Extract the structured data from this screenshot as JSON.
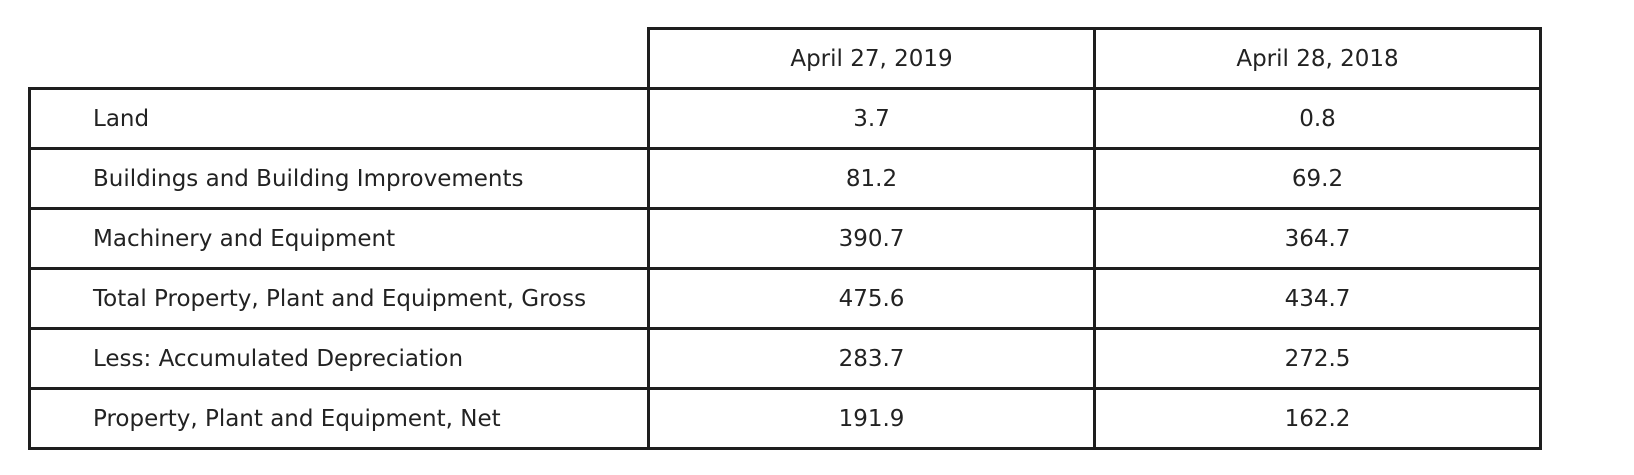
{
  "table": {
    "columns": [
      "",
      "April 27, 2019",
      "April 28, 2018"
    ],
    "rows": [
      {
        "label": "Land",
        "values": [
          "3.7",
          "0.8"
        ]
      },
      {
        "label": "Buildings and Building Improvements",
        "values": [
          "81.2",
          "69.2"
        ]
      },
      {
        "label": "Machinery and Equipment",
        "values": [
          "390.7",
          "364.7"
        ]
      },
      {
        "label": "Total Property, Plant and Equipment, Gross",
        "values": [
          "475.6",
          "434.7"
        ]
      },
      {
        "label": "Less: Accumulated Depreciation",
        "values": [
          "283.7",
          "272.5"
        ]
      },
      {
        "label": "Property, Plant and Equipment, Net",
        "values": [
          "191.9",
          "162.2"
        ]
      }
    ]
  }
}
